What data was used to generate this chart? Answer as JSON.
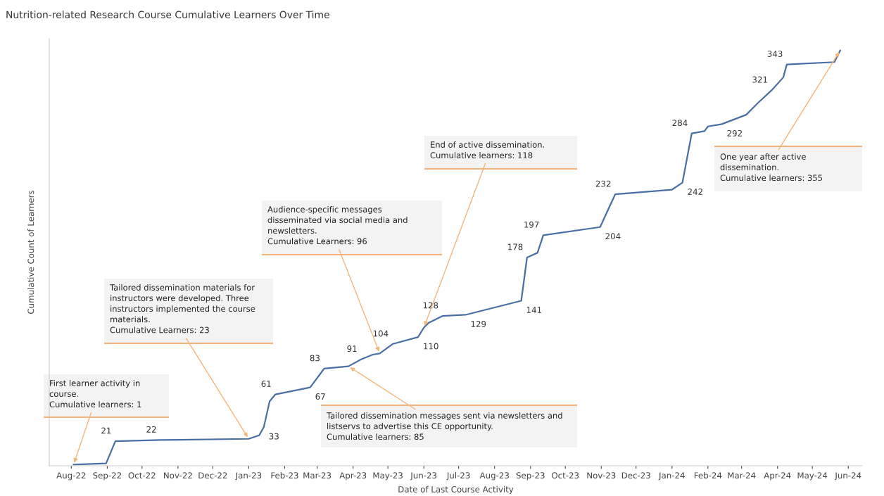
{
  "chart_data": {
    "type": "line",
    "title": "Nutrition-related Research Course Cumulative Learners Over Time",
    "xlabel": "Date of Last Course Activity",
    "ylabel": "Cumulative Count of Learners",
    "x": [
      "2022-08-03",
      "2022-08-31",
      "2022-09-08",
      "2022-10-17",
      "2023-01-01",
      "2023-01-10",
      "2023-01-14",
      "2023-01-19",
      "2023-01-24",
      "2023-02-23",
      "2023-03-07",
      "2023-03-28",
      "2023-04-08",
      "2023-04-18",
      "2023-04-24",
      "2023-05-05",
      "2023-05-27",
      "2023-06-01",
      "2023-06-05",
      "2023-06-17",
      "2023-07-07",
      "2023-08-24",
      "2023-08-29",
      "2023-09-07",
      "2023-09-12",
      "2023-10-31",
      "2023-11-13",
      "2024-01-01",
      "2024-01-10",
      "2024-01-18",
      "2024-01-29",
      "2024-02-01",
      "2024-02-13",
      "2024-03-05",
      "2024-03-15",
      "2024-03-27",
      "2024-04-06",
      "2024-04-09",
      "2024-05-20",
      "2024-05-25"
    ],
    "series": [
      {
        "color": "#4a6fa5",
        "values": [
          1,
          2,
          21,
          22,
          23,
          26,
          33,
          55,
          61,
          67,
          83,
          85,
          91,
          95,
          96,
          104,
          110,
          118,
          122,
          128,
          129,
          141,
          178,
          182,
          197,
          204,
          232,
          236,
          242,
          284,
          286,
          290,
          292,
          300,
          310,
          321,
          332,
          343,
          345,
          355
        ],
        "value_labels": [
          null,
          null,
          "21",
          "22",
          null,
          null,
          "33",
          null,
          "61",
          "67",
          "83",
          null,
          "91",
          null,
          null,
          "104",
          "110",
          null,
          null,
          "128",
          "129",
          "141",
          "178",
          null,
          "197",
          "204",
          "232",
          null,
          "242",
          "284",
          null,
          null,
          "292",
          null,
          null,
          "321",
          null,
          "343",
          null,
          null
        ]
      }
    ],
    "xlim": [
      "2022-07-13",
      "2024-06-13"
    ],
    "ylim": [
      0,
      365
    ],
    "xticks": [
      {
        "value": "2022-08-01",
        "label": "Aug-22"
      },
      {
        "value": "2022-09-01",
        "label": "Sep-22"
      },
      {
        "value": "2022-10-01",
        "label": "Oct-22"
      },
      {
        "value": "2022-11-01",
        "label": "Nov-22"
      },
      {
        "value": "2022-12-01",
        "label": "Dec-22"
      },
      {
        "value": "2023-01-01",
        "label": "Jan-23"
      },
      {
        "value": "2023-02-01",
        "label": "Feb-23"
      },
      {
        "value": "2023-03-01",
        "label": "Mar-23"
      },
      {
        "value": "2023-04-01",
        "label": "Apr-23"
      },
      {
        "value": "2023-05-01",
        "label": "May-23"
      },
      {
        "value": "2023-06-01",
        "label": "Jun-23"
      },
      {
        "value": "2023-07-01",
        "label": "Jul-23"
      },
      {
        "value": "2023-08-01",
        "label": "Aug-23"
      },
      {
        "value": "2023-09-01",
        "label": "Sep-23"
      },
      {
        "value": "2023-10-01",
        "label": "Oct-23"
      },
      {
        "value": "2023-11-01",
        "label": "Nov-23"
      },
      {
        "value": "2023-12-01",
        "label": "Dec-23"
      },
      {
        "value": "2024-01-01",
        "label": "Jan-24"
      },
      {
        "value": "2024-02-01",
        "label": "Feb-24"
      },
      {
        "value": "2024-03-01",
        "label": "Mar-24"
      },
      {
        "value": "2024-04-01",
        "label": "Apr-24"
      },
      {
        "value": "2024-05-01",
        "label": "May-24"
      },
      {
        "value": "2024-06-01",
        "label": "Jun-24"
      }
    ],
    "tick_labels": "x",
    "grid": false,
    "legend": false,
    "marker": "none",
    "line_style": "solid",
    "annotations": [
      {
        "text": "First learner activity in\ncourse.\nCumulative learners: 1",
        "x": "2022-08-03",
        "y": 1
      },
      {
        "text": "Tailored dissemination materials for\ninstructors were developed. Three\ninstructors implemented the course\nmaterials.\nCumulative Learners: 23",
        "x": "2023-01-01",
        "y": 23
      },
      {
        "text": "Audience-specific messages\ndisseminated via social media and\nnewsletters.\nCumulative Learners: 96",
        "x": "2023-04-24",
        "y": 96
      },
      {
        "text": "End of active dissemination.\nCumulative learners: 118",
        "x": "2023-06-01",
        "y": 118
      },
      {
        "text": "Tailored dissemination messages sent via newsletters and\nlistservs to advertise this CE opportunity.\nCumulative learners: 85",
        "x": "2023-03-28",
        "y": 85
      },
      {
        "text": "One year after active\ndissemination.\nCumulative learners: 355",
        "x": "2024-05-25",
        "y": 355
      }
    ]
  }
}
